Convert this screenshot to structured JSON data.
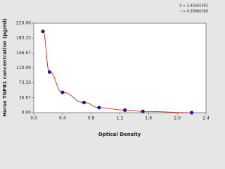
{
  "chart_data": {
    "type": "scatter",
    "x_label": "Optical Density",
    "y_label": "Horse TGFB1 concentration (pg/ml)",
    "annotations": [
      "S = 2.45665382",
      "r = 0.99980389"
    ],
    "series": [
      {
        "color": "#1c1c9c",
        "line_color": "#d42020",
        "x": [
          0.127,
          0.22,
          0.4,
          0.7,
          0.91,
          1.27,
          1.52,
          2.2
        ],
        "values": [
          200,
          100,
          50,
          25,
          12.5,
          6.25,
          3.12,
          0
        ]
      }
    ],
    "xlim": [
      0,
      2.4
    ],
    "xticks": [
      {
        "value": 0,
        "label": "0.0"
      },
      0.4,
      0.8,
      1.2,
      1.6,
      {
        "value": 2,
        "label": "2.0"
      },
      2.4
    ],
    "ylim": [
      0,
      220
    ],
    "yticks": [
      {
        "value": 0,
        "label": "0.00"
      },
      36.67,
      73.33,
      {
        "value": 110,
        "label": "110.00"
      },
      146.67,
      183.33,
      {
        "value": 220,
        "label": "220.00"
      }
    ]
  }
}
